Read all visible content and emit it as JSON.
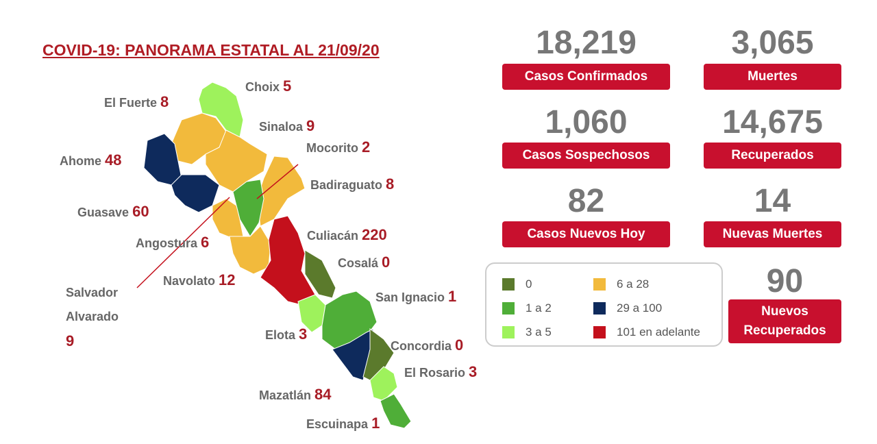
{
  "title": "COVID-19: PANORAMA ESTATAL AL 21/09/20",
  "municipalities": [
    {
      "name": "Choix",
      "value": 5
    },
    {
      "name": "El Fuerte",
      "value": 8
    },
    {
      "name": "Sinaloa",
      "value": 9
    },
    {
      "name": "Mocorito",
      "value": 2
    },
    {
      "name": "Ahome",
      "value": 48
    },
    {
      "name": "Badiraguato",
      "value": 8
    },
    {
      "name": "Guasave",
      "value": 60
    },
    {
      "name": "Culiacán",
      "value": 220
    },
    {
      "name": "Angostura",
      "value": 6
    },
    {
      "name": "Cosalá",
      "value": 0
    },
    {
      "name": "Navolato",
      "value": 12
    },
    {
      "name": "Salvador Alvarado",
      "value": 9
    },
    {
      "name": "San Ignacio",
      "value": 1
    },
    {
      "name": "Elota",
      "value": 3
    },
    {
      "name": "Concordia",
      "value": 0
    },
    {
      "name": "El Rosario",
      "value": 3
    },
    {
      "name": "Mazatlán",
      "value": 84
    },
    {
      "name": "Escuinapa",
      "value": 1
    }
  ],
  "stats": [
    {
      "value": "18,219",
      "label": "Casos Confirmados"
    },
    {
      "value": "3,065",
      "label": "Muertes"
    },
    {
      "value": "1,060",
      "label": "Casos Sospechosos"
    },
    {
      "value": "14,675",
      "label": "Recuperados"
    },
    {
      "value": "82",
      "label": "Casos Nuevos Hoy"
    },
    {
      "value": "14",
      "label": "Nuevas Muertes"
    },
    {
      "value": "90",
      "label": "Nuevos Recuperados"
    }
  ],
  "legend": [
    {
      "label": "0",
      "color": "#5b7a2c"
    },
    {
      "label": "1 a 2",
      "color": "#4fae38"
    },
    {
      "label": "3 a 5",
      "color": "#9ef25c"
    },
    {
      "label": "6 a 28",
      "color": "#f2ba3c"
    },
    {
      "label": "29 a 100",
      "color": "#0e2a5c"
    },
    {
      "label": "101 en adelante",
      "color": "#c4101c"
    }
  ]
}
